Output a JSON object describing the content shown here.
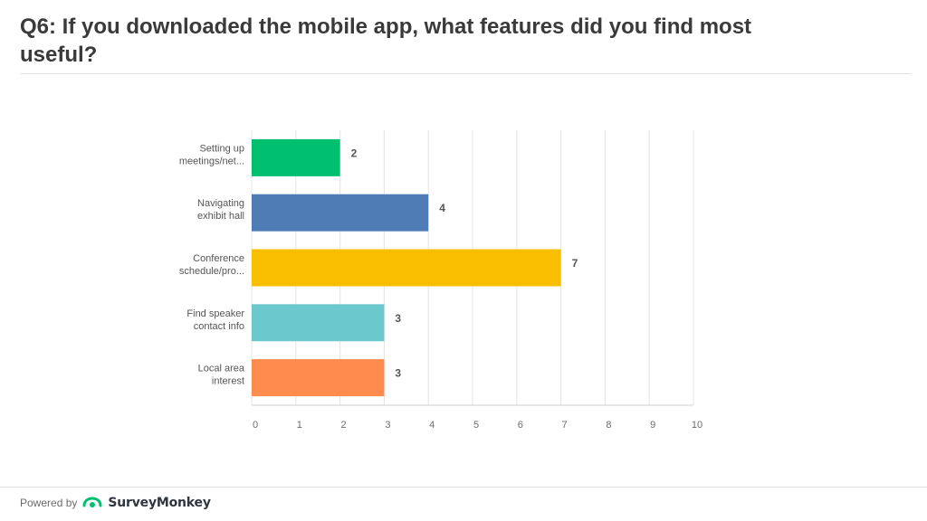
{
  "header": {
    "question_title": "Q6: If you downloaded the mobile app, what features did you find most useful?"
  },
  "chart_data": {
    "type": "bar",
    "orientation": "horizontal",
    "categories": [
      [
        "Setting up",
        "meetings/net..."
      ],
      [
        "Navigating",
        "exhibit hall"
      ],
      [
        "Conference",
        "schedule/pro..."
      ],
      [
        "Find speaker",
        "contact info"
      ],
      [
        "Local area",
        "interest"
      ]
    ],
    "values": [
      2,
      4,
      7,
      3,
      3
    ],
    "colors": [
      "#00bf6f",
      "#507cb6",
      "#f9be00",
      "#6bc8cd",
      "#ff8b4f"
    ],
    "xlim": [
      0,
      10
    ],
    "xticks": [
      "0",
      "1",
      "2",
      "3",
      "4",
      "5",
      "6",
      "7",
      "8",
      "9",
      "10"
    ],
    "grid": true,
    "data_labels": true
  },
  "footer": {
    "powered_by": "Powered by",
    "brand": "SurveyMonkey"
  }
}
